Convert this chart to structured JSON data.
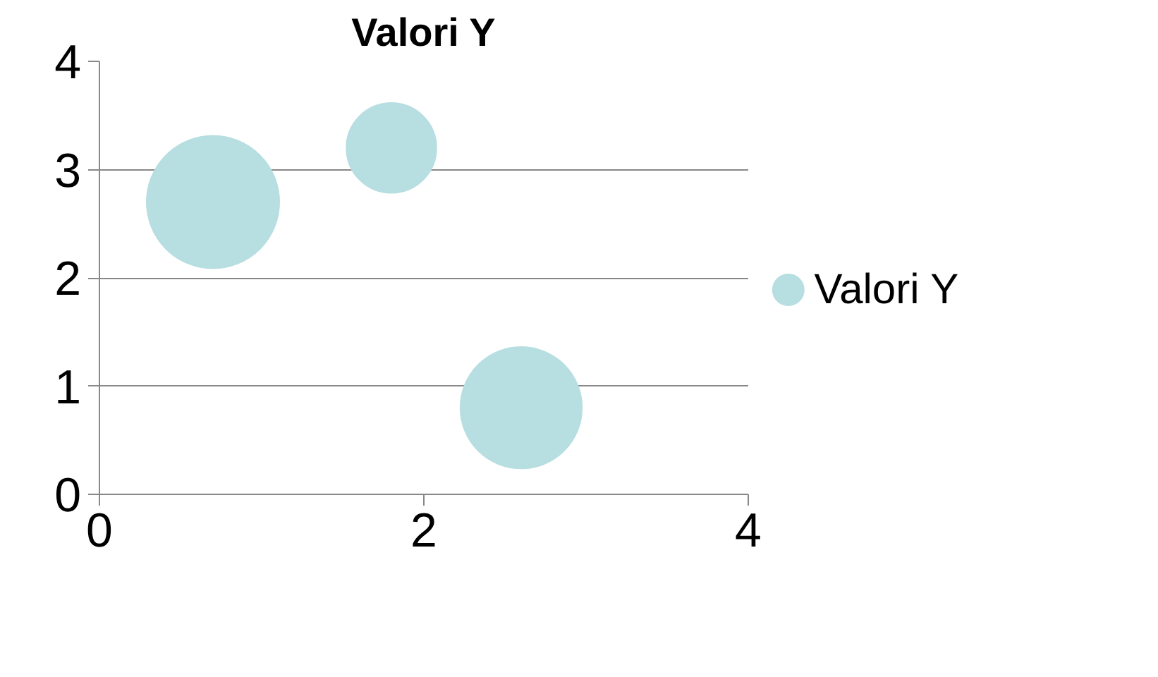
{
  "chart_data": {
    "type": "bubble",
    "title": "Valori Y",
    "x": [
      0.7,
      1.8,
      2.6
    ],
    "series": [
      {
        "name": "Valori Y",
        "color": "#b7dee1",
        "values": [
          2.7,
          3.2,
          0.8
        ],
        "sizes": [
          1,
          0.46,
          0.84
        ]
      }
    ],
    "xlim": [
      0,
      4
    ],
    "xticks": [
      0,
      2,
      4
    ],
    "ylim": [
      0,
      4
    ],
    "yticks": [
      0,
      1,
      2,
      3,
      4
    ],
    "grid": "y",
    "legend": "right"
  }
}
